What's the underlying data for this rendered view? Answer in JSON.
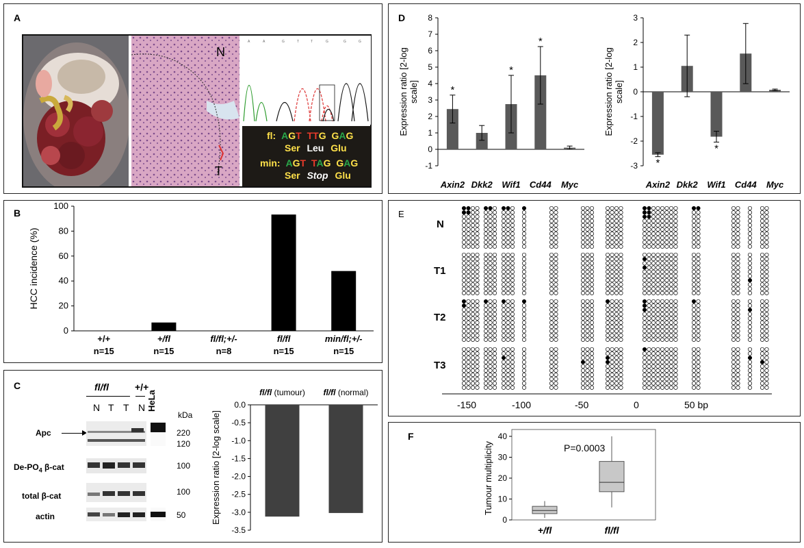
{
  "panels": {
    "A": {
      "label": "A",
      "histology": {
        "normal": "N",
        "tumour": "T"
      },
      "sequence": {
        "fl_label": "fl:",
        "fl_codons": [
          "AGT",
          "TTG",
          "GAG"
        ],
        "fl_aa": [
          "Ser",
          "Leu",
          "Glu"
        ],
        "min_label": "min:",
        "min_codons": [
          "AGT",
          "TAG",
          "GAG"
        ],
        "min_aa": [
          "Ser",
          "Stop",
          "Glu"
        ]
      }
    },
    "B": {
      "label": "B"
    },
    "C": {
      "label": "C",
      "blot": {
        "group1": "fl/fl",
        "group2": "+/+",
        "cell_line": "HeLa",
        "lanes": [
          "N",
          "T",
          "T",
          "N"
        ],
        "kda_label": "kDa",
        "rows": [
          "Apc",
          "De-PO4 β-cat",
          "total β-cat",
          "actin"
        ],
        "row_parts": {
          "depo_pre": "De-PO",
          "depo_sub": "4",
          "depo_post": " β-cat"
        },
        "markers": [
          "220",
          "120",
          "100",
          "100",
          "50"
        ]
      }
    },
    "D": {
      "label": "D"
    },
    "E": {
      "label": "E",
      "rows": [
        "N",
        "T1",
        "T2",
        "T3"
      ],
      "axis_ticks": [
        "-150",
        "-100",
        "-50",
        "0",
        "50 bp"
      ]
    },
    "F": {
      "label": "F"
    }
  },
  "chart_data": [
    {
      "id": "B",
      "type": "bar",
      "ylabel": "HCC incidence (%)",
      "ylim": [
        0,
        100
      ],
      "yticks": [
        0,
        20,
        40,
        60,
        80,
        100
      ],
      "categories": [
        "+/+",
        "+/fl",
        "fl/fl;+/-",
        "fl/fl",
        "min/fl;+/-"
      ],
      "counts": [
        "n=15",
        "n=15",
        "n=8",
        "n=15",
        "n=15"
      ],
      "values": [
        0,
        6.7,
        0,
        93.3,
        48
      ],
      "color": "#000000"
    },
    {
      "id": "C",
      "type": "bar",
      "ylabel": "Expression ratio [2-log scale]",
      "ylim": [
        -3.5,
        0
      ],
      "yticks": [
        "0.0",
        "-0.5",
        "-1.0",
        "-1.5",
        "-2.0",
        "-2.5",
        "-3.0",
        "-3.5"
      ],
      "categories": [
        "fl/fl",
        "fl/fl"
      ],
      "category_suffix": [
        " (tumour)",
        " (normal)"
      ],
      "values": [
        -3.12,
        -3.02
      ],
      "color": "#404040"
    },
    {
      "id": "D1",
      "type": "bar",
      "ylabel": "Expression ratio [2-log scale]",
      "ylim": [
        -1,
        8
      ],
      "yticks": [
        8,
        7,
        6,
        5,
        4,
        3,
        2,
        1,
        0,
        -1
      ],
      "categories": [
        "Axin2",
        "Dkk2",
        "Wif1",
        "Cd44",
        "Myc"
      ],
      "values": [
        2.45,
        1.0,
        2.75,
        4.5,
        0.1
      ],
      "errors": [
        0.85,
        0.45,
        1.75,
        1.75,
        0.1
      ],
      "significant": [
        true,
        false,
        true,
        true,
        false
      ],
      "star": "*",
      "color": "#595959"
    },
    {
      "id": "D2",
      "type": "bar",
      "ylabel": "Expression ratio [2-log scale]",
      "ylim": [
        -3,
        3
      ],
      "yticks": [
        3,
        2,
        1,
        0,
        -1,
        -2,
        -3
      ],
      "categories": [
        "Axin2",
        "Dkk2",
        "Wif1",
        "Cd44",
        "Myc"
      ],
      "values": [
        -2.55,
        1.05,
        -1.82,
        1.55,
        0.08
      ],
      "errors": [
        0.08,
        1.25,
        0.22,
        1.22,
        0.03
      ],
      "significant": [
        true,
        false,
        true,
        false,
        false
      ],
      "star": "*",
      "color": "#595959"
    },
    {
      "id": "F",
      "type": "box",
      "ylabel": "Tumour multiplicity",
      "ylim": [
        0,
        40
      ],
      "yticks": [
        0,
        10,
        20,
        30,
        40
      ],
      "categories": [
        "+/fl",
        "fl/fl"
      ],
      "boxes": [
        {
          "min": 1,
          "q1": 3,
          "median": 4.5,
          "q3": 6.5,
          "max": 9
        },
        {
          "min": 6,
          "q1": 13.5,
          "median": 18,
          "q3": 28,
          "max": 40
        }
      ],
      "annotation": "P=0.0003",
      "color": "#c8c8c8"
    }
  ]
}
